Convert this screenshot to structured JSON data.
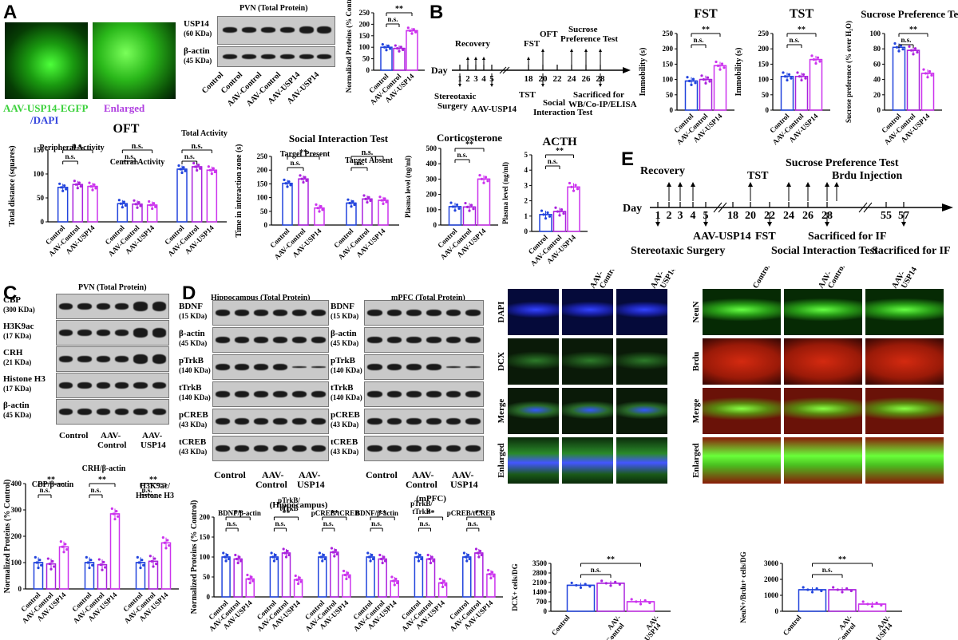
{
  "panels": {
    "A": "A",
    "B": "B",
    "C": "C",
    "D": "D",
    "E": "E"
  },
  "groups": [
    "Control",
    "AAV-Control",
    "AAV-USP14"
  ],
  "A": {
    "micro1_label": "AAV-USP14-EGFP",
    "micro1_label2": "/DAPI",
    "micro2_label": "Enlarged",
    "blot_title": "PVN (Total Protein)",
    "bands": [
      {
        "name": "USP14",
        "kda": "(60 KDa)"
      },
      {
        "name": "β-actin",
        "kda": "(45 KDa)"
      }
    ],
    "lanes": [
      "Control",
      "Control",
      "AAV-Control",
      "AAV-Control",
      "AAV-USP14",
      "AAV-USP14"
    ],
    "ylabel": "Normalized Proteins (% Control)"
  },
  "B": {
    "timeline": {
      "day": "Day",
      "recovery": "Recovery",
      "fst": "FST",
      "oft": "OFT",
      "sucrose1": "Sucrose",
      "sucrose2": "Preference Test",
      "tst": "TST",
      "surgery1": "Stereotaxic",
      "surgery2": "Surgery",
      "aav": "AAV-USP14",
      "social1": "Social",
      "social2": "Interaction Test",
      "sacr1": "Sacrificed for",
      "sacr2": "WB/Co-IP/ELISA",
      "ticks": [
        "1",
        "2",
        "3",
        "4",
        "5",
        "18",
        "20",
        "22",
        "24",
        "26",
        "28"
      ]
    },
    "fst_title": "FST",
    "tst_title": "TST",
    "spt_title": "Sucrose Preference Test",
    "imm_label": "Immobility (s)",
    "spt_label": "Sucrose preference (% over H₂O)"
  },
  "OFT": {
    "title": "OFT",
    "peripheral": "Peripheral Activity",
    "central": "Central Activity",
    "total": "Total Activity",
    "ylabel": "Total distance (squares)"
  },
  "SIT": {
    "title": "Social Interaction Test",
    "present": "Target Present",
    "absent": "Target Absent",
    "ylabel": "Time in interaction zone (s)"
  },
  "CORT": {
    "title": "Corticosterone",
    "ylabel": "Plasma level (ng/ml)"
  },
  "ACTH": {
    "title": "ACTH",
    "ylabel": "Plasma level (ng/ml)"
  },
  "E": {
    "day": "Day",
    "recovery": "Recovery",
    "tst": "TST",
    "spt": "Sucrose Preference Test",
    "brdu": "Brdu Injection",
    "surgery": "Stereotaxic Surgery",
    "aav": "AAV-USP14",
    "fst": "FST",
    "social": "Social Interaction Test",
    "sacr1": "Sacrificed for IF",
    "sacr2": "Sacrificed for IF",
    "ticks": [
      "1",
      "2",
      "3",
      "4",
      "5",
      "18",
      "20",
      "22",
      "24",
      "26",
      "28",
      "55",
      "57"
    ]
  },
  "C": {
    "blot_title": "PVN (Total Protein)",
    "bands": [
      {
        "name": "CBP",
        "kda": "(300 KDa)"
      },
      {
        "name": "H3K9ac",
        "kda": "(17 KDa)"
      },
      {
        "name": "CRH",
        "kda": "(21 KDa)"
      },
      {
        "name": "Histone H3",
        "kda": "(17 KDa)"
      },
      {
        "name": "β-actin",
        "kda": "(45 KDa)"
      }
    ],
    "groups_two_line": [
      [
        "Control",
        ""
      ],
      [
        "AAV-",
        "Control"
      ],
      [
        "AAV-",
        "USP14"
      ]
    ],
    "labels": [
      "CBP/β-actin",
      "CRH/β-actin",
      "H3K9ac/",
      "Histone H3"
    ],
    "ylabel": "Normalized Proteins (% Control)"
  },
  "D": {
    "hippo_title": "Hippocampus (Total Protein)",
    "mpfc_title": "mPFC (Total Protein)",
    "bands": [
      {
        "name": "BDNF",
        "kda": "(15 KDa)"
      },
      {
        "name": "β-actin",
        "kda": "(45 KDa)"
      },
      {
        "name": "pTrkB",
        "kda": "(140 KDa)"
      },
      {
        "name": "tTrkB",
        "kda": "(140 KDa)"
      },
      {
        "name": "pCREB",
        "kda": "(43 KDa)"
      },
      {
        "name": "tCREB",
        "kda": "(43 KDa)"
      }
    ],
    "groups_two_line": [
      [
        "Control",
        ""
      ],
      [
        "AAV-",
        "Control"
      ],
      [
        "AAV-",
        "USP14"
      ]
    ],
    "hippo": "(Hippocampus)",
    "mpfc": "(mPFC)",
    "labels": [
      "BDNF/β-actin",
      "pTrkB/",
      "tTrkB",
      "pCREB/tCREB",
      "BDNF/β-actin",
      "pTrkB/",
      "tTrkB",
      "pCREB/tCREB"
    ],
    "ylabel": "Normalized Proteins (% Control)"
  },
  "IF1": {
    "cols": [
      "",
      "AAV-",
      "Control",
      "AAV-",
      "USP14"
    ],
    "rows": [
      "DAPI",
      "DCX",
      "Merge",
      "Enlarged"
    ],
    "ylabel": "DCX+ cells/DG"
  },
  "IF2": {
    "cols": [
      "Control",
      "AAV-",
      "Control",
      "AAV-",
      "USP14"
    ],
    "rows": [
      "NeuN",
      "Brdu",
      "Merge",
      "Enlarged"
    ],
    "ylabel": "NeuN+/Brdu+ cells/DG"
  },
  "sig": {
    "ns": "n.s.",
    "ss": "**"
  },
  "chart_data": [
    {
      "type": "bar",
      "title": "",
      "categories": [
        "Control",
        "AAV-Control",
        "AAV-USP14"
      ],
      "values": [
        100,
        95,
        172
      ],
      "ylim": [
        0,
        250
      ],
      "yticks": [
        "0",
        "50",
        "100",
        "150",
        "200",
        "250"
      ],
      "ylabel": "Normalized Proteins (% Control)"
    },
    {
      "type": "bar",
      "title": "FST",
      "categories": [
        "Control",
        "AAV-Control",
        "AAV-USP14"
      ],
      "values": [
        95,
        100,
        145
      ],
      "ylim": [
        0,
        250
      ],
      "yticks": [
        "0",
        "50",
        "100",
        "150",
        "200",
        "250"
      ],
      "ylabel": "Immobility (s)"
    },
    {
      "type": "bar",
      "title": "TST",
      "categories": [
        "Control",
        "AAV-Control",
        "AAV-USP14"
      ],
      "values": [
        110,
        110,
        165
      ],
      "ylim": [
        0,
        250
      ],
      "yticks": [
        "0",
        "50",
        "100",
        "150",
        "200",
        "250"
      ],
      "ylabel": "Immobility (s)"
    },
    {
      "type": "bar",
      "title": "Sucrose Preference Test",
      "categories": [
        "Control",
        "AAV-Control",
        "AAV-USP14"
      ],
      "values": [
        82,
        78,
        48
      ],
      "ylim": [
        0,
        100
      ],
      "yticks": [
        "0",
        "20",
        "40",
        "60",
        "80",
        "100"
      ],
      "ylabel": "Sucrose preference (% over H₂O)"
    },
    {
      "type": "bar",
      "title": "OFT",
      "series": [
        {
          "name": "Peripheral Activity",
          "values": [
            72,
            78,
            74
          ]
        },
        {
          "name": "Central Activity",
          "values": [
            38,
            37,
            35
          ]
        },
        {
          "name": "Total Activity",
          "values": [
            110,
            115,
            108
          ]
        }
      ],
      "categories": [
        "Control",
        "AAV-Control",
        "AAV-USP14"
      ],
      "ylim": [
        0,
        150
      ],
      "yticks": [
        "0",
        "50",
        "100",
        "150"
      ],
      "ylabel": "Total distance (squares)"
    },
    {
      "type": "bar",
      "title": "Social Interaction Test",
      "series": [
        {
          "name": "Target Present",
          "values": [
            152,
            168,
            62
          ]
        },
        {
          "name": "Target Absent",
          "values": [
            80,
            95,
            90
          ]
        }
      ],
      "categories": [
        "Control",
        "AAV-Control",
        "AAV-USP14"
      ],
      "ylim": [
        0,
        250
      ],
      "yticks": [
        "0",
        "50",
        "100",
        "150",
        "200",
        "250"
      ],
      "ylabel": "Time in interaction zone (s)"
    },
    {
      "type": "bar",
      "title": "Corticosterone",
      "categories": [
        "Control",
        "AAV-Control",
        "AAV-USP14"
      ],
      "values": [
        120,
        118,
        300
      ],
      "ylim": [
        0,
        500
      ],
      "yticks": [
        "0",
        "100",
        "200",
        "300",
        "400",
        "500"
      ],
      "ylabel": "Plasma level (ng/ml)"
    },
    {
      "type": "bar",
      "title": "ACTH",
      "categories": [
        "Control",
        "AAV-Control",
        "AAV-USP14"
      ],
      "values": [
        1.1,
        1.3,
        2.9
      ],
      "ylim": [
        0,
        5
      ],
      "yticks": [
        "0",
        "1",
        "2",
        "3",
        "4",
        "5"
      ],
      "ylabel": "Plasma level (ng/ml)"
    },
    {
      "type": "bar",
      "title": "",
      "series": [
        {
          "name": "CBP/β-actin",
          "values": [
            100,
            95,
            160
          ]
        },
        {
          "name": "CRH/β-actin",
          "values": [
            100,
            92,
            285
          ]
        },
        {
          "name": "H3K9ac/Histone H3",
          "values": [
            100,
            105,
            175
          ]
        }
      ],
      "categories": [
        "Control",
        "AAV-Control",
        "AAV-USP14"
      ],
      "ylim": [
        0,
        400
      ],
      "yticks": [
        "0",
        "100",
        "200",
        "300",
        "400"
      ],
      "ylabel": "Normalized Proteins (% Control)"
    },
    {
      "type": "bar",
      "title": "",
      "series": [
        {
          "name": "Hippocampus BDNF/β-actin",
          "values": [
            100,
            95,
            45
          ]
        },
        {
          "name": "Hippocampus pTrkB/tTrkB",
          "values": [
            100,
            110,
            43
          ]
        },
        {
          "name": "Hippocampus pCREB/tCREB",
          "values": [
            100,
            112,
            55
          ]
        },
        {
          "name": "mPFC BDNF/β-actin",
          "values": [
            100,
            95,
            40
          ]
        },
        {
          "name": "mPFC pTrkB/tTrkB",
          "values": [
            100,
            95,
            35
          ]
        },
        {
          "name": "mPFC pCREB/tCREB",
          "values": [
            100,
            110,
            57
          ]
        }
      ],
      "categories": [
        "Control",
        "AAV-Control",
        "AAV-USP14"
      ],
      "ylim": [
        0,
        200
      ],
      "yticks": [
        "0",
        "50",
        "100",
        "150",
        "200"
      ],
      "ylabel": "Normalized Proteins (% Control)"
    },
    {
      "type": "bar",
      "title": "",
      "categories": [
        "Control",
        "AAV-Control",
        "AAV-USP14"
      ],
      "values": [
        1900,
        2050,
        700
      ],
      "ylim": [
        0,
        3500
      ],
      "yticks": [
        "0",
        "700",
        "1400",
        "2100",
        "2800",
        "3500"
      ],
      "ylabel": "DCX+ cells/DG"
    },
    {
      "type": "bar",
      "title": "",
      "categories": [
        "Control",
        "AAV-Control",
        "AAV-USP14"
      ],
      "values": [
        1350,
        1350,
        450
      ],
      "ylim": [
        0,
        3000
      ],
      "yticks": [
        "0",
        "1000",
        "2000",
        "3000"
      ],
      "ylabel": "NeuN+/Brdu+ cells/DG"
    }
  ]
}
